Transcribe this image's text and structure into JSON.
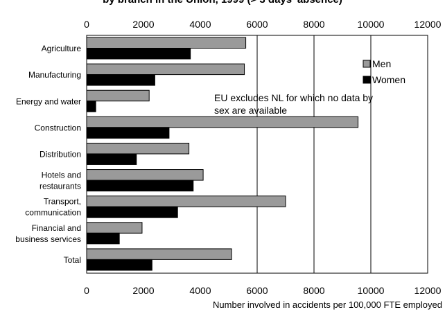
{
  "title": "by branch in the Union, 1999 (> 3 days' absence)",
  "chart_data": {
    "type": "bar",
    "orientation": "horizontal",
    "categories": [
      "Agriculture",
      "Manufacturing",
      "Energy and water",
      "Construction",
      "Distribution",
      "Hotels and restaurants",
      "Transport, communication",
      "Financial and business services",
      "Total"
    ],
    "category_lines": [
      [
        "Agriculture"
      ],
      [
        "Manufacturing"
      ],
      [
        "Energy and water"
      ],
      [
        "Construction"
      ],
      [
        "Distribution"
      ],
      [
        "Hotels and",
        "restaurants"
      ],
      [
        "Transport,",
        "communication"
      ],
      [
        "Financial and",
        "business services"
      ],
      [
        "Total"
      ]
    ],
    "series": [
      {
        "name": "Men",
        "color": "#9a9a9a",
        "values": [
          5600,
          5550,
          2200,
          9550,
          3600,
          4100,
          7000,
          1950,
          5100
        ]
      },
      {
        "name": "Women",
        "color": "#000000",
        "values": [
          3650,
          2400,
          320,
          2900,
          1750,
          3750,
          3200,
          1150,
          2300
        ]
      }
    ],
    "xlim": [
      0,
      12000
    ],
    "xticks": [
      0,
      2000,
      4000,
      6000,
      8000,
      10000,
      12000
    ],
    "xlabel": "Number involved in accidents per 100,000 FTE employed",
    "gridlines": [
      6000,
      8000,
      10000
    ],
    "legend_position": "right",
    "annotation": [
      "EU excludes NL for which no data by",
      "sex are available"
    ]
  }
}
